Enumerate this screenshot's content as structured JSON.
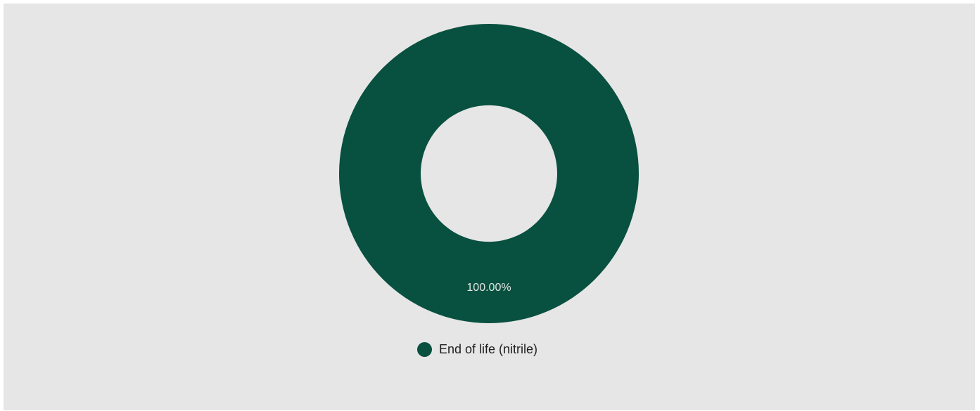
{
  "chart_data": {
    "type": "pie",
    "variant": "donut",
    "title": "",
    "slices": [
      {
        "label": "End of life (nitrile)",
        "value": 100.0,
        "display": "100.00%",
        "color": "#08503f"
      }
    ],
    "legend_position": "bottom",
    "grid": false
  },
  "colors": {
    "background": "#e6e6e6",
    "slice_label": "#e6e6e6",
    "legend_text": "#1e1e1e"
  }
}
